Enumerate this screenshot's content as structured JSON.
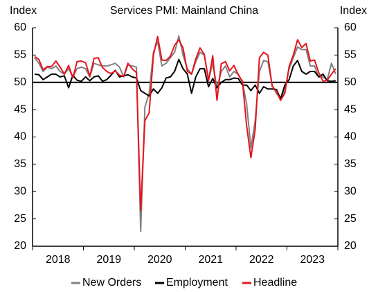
{
  "chart_data": {
    "type": "line",
    "title": "Services PMI: Mainland China",
    "ylabel": "Index",
    "y2label": "Index",
    "categories": [
      "2018",
      null,
      null,
      null,
      null,
      null,
      null,
      null,
      null,
      null,
      null,
      null,
      "2019",
      null,
      null,
      null,
      null,
      null,
      null,
      null,
      null,
      null,
      null,
      null,
      "2020",
      null,
      null,
      null,
      null,
      null,
      null,
      null,
      null,
      null,
      null,
      null,
      "2021",
      null,
      null,
      null,
      null,
      null,
      null,
      null,
      null,
      null,
      null,
      null,
      "2022",
      null,
      null,
      null,
      null,
      null,
      null,
      null,
      null,
      null,
      null,
      null,
      "2023",
      null,
      null,
      null,
      null,
      null,
      null,
      null,
      null,
      null,
      null,
      null
    ],
    "series": [
      {
        "name": "New Orders",
        "color": "#808080",
        "values": [
          54.5,
          53.5,
          52,
          52.8,
          52.5,
          53,
          52,
          51.5,
          52.5,
          51,
          52.5,
          52.8,
          52.5,
          51,
          53.5,
          53.2,
          53,
          53,
          53.2,
          53.5,
          52.8,
          51,
          53.2,
          53,
          52.8,
          22.7,
          45.5,
          48,
          55.5,
          57.5,
          53,
          53.5,
          54.5,
          55.5,
          58.5,
          55,
          52.5,
          51.5,
          53.8,
          55.5,
          55,
          50.5,
          53.5,
          49,
          52,
          53,
          51,
          52,
          51.5,
          50,
          46,
          38,
          43,
          52,
          54,
          53.8,
          49.5,
          48,
          47,
          48.5,
          52.5,
          54.5,
          56.5,
          56,
          56,
          53,
          53,
          51,
          51,
          50.5,
          53.5,
          51.5
        ]
      },
      {
        "name": "Employment",
        "color": "#000000",
        "values": [
          51.5,
          51.4,
          50.5,
          51,
          51.5,
          51.5,
          51,
          51.2,
          49,
          51.3,
          50.4,
          50.2,
          51,
          50.3,
          51,
          51.2,
          50.2,
          50.5,
          51.3,
          52.2,
          51,
          51.2,
          51.4,
          51,
          50.8,
          48.5,
          48,
          47.5,
          48.8,
          48,
          49,
          50.8,
          51,
          52,
          54.2,
          52.5,
          51.5,
          48,
          51,
          52.5,
          52.5,
          49.2,
          50.7,
          49,
          50,
          50.5,
          50.5,
          50.8,
          50.7,
          49.5,
          49.5,
          48.5,
          49.5,
          48,
          49.2,
          48.8,
          48.8,
          48.7,
          47,
          49.5,
          50.5,
          53,
          54,
          52,
          51.5,
          52,
          52,
          51,
          51.5,
          50.3,
          50.2,
          50.3
        ]
      },
      {
        "name": "Headline",
        "color": "#e8141c",
        "values": [
          54.7,
          54.2,
          52.3,
          52.9,
          52.9,
          53.9,
          52.8,
          51.5,
          53.1,
          50.8,
          53.8,
          53.9,
          53.6,
          51.1,
          54.4,
          54.5,
          52.7,
          52,
          51.6,
          52.1,
          51.3,
          51.1,
          53.5,
          52.5,
          51.8,
          26.5,
          43,
          44.4,
          55,
          58.4,
          54.1,
          54,
          54.8,
          56.8,
          57.8,
          56.3,
          52,
          51.5,
          54.3,
          56.3,
          55.1,
          50.3,
          54.9,
          46.7,
          53.4,
          53.8,
          52.1,
          53.1,
          51.4,
          50.2,
          42,
          36.2,
          41.4,
          54.5,
          55.5,
          55,
          49.3,
          48.4,
          46.7,
          48,
          52.9,
          55,
          57.8,
          56.4,
          57.1,
          53.9,
          54.1,
          51.8,
          50.2,
          50.4,
          51.5,
          52.5
        ]
      }
    ],
    "hline": 50,
    "ylim": [
      20,
      60
    ],
    "yticks": [
      20,
      25,
      30,
      35,
      40,
      45,
      50,
      55,
      60
    ],
    "y2lim": [
      20,
      60
    ],
    "y2ticks": [
      20,
      25,
      30,
      35,
      40,
      45,
      50,
      55,
      60
    ]
  }
}
